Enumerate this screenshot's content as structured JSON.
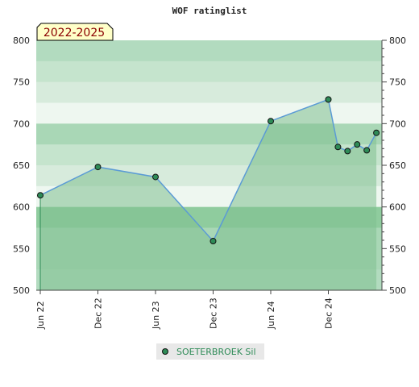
{
  "chart_data": {
    "type": "area",
    "title": "WOF ratinglist",
    "period_label": "2022-2025",
    "xlabel": "",
    "ylabel": "",
    "ylim": [
      500,
      800
    ],
    "yticks": [
      500,
      550,
      600,
      650,
      700,
      750,
      800
    ],
    "xlim": [
      "2022-06",
      "2025-06"
    ],
    "xticks": [
      {
        "date": "2022-06",
        "label": "Jun 22"
      },
      {
        "date": "2022-12",
        "label": "Dec 22"
      },
      {
        "date": "2023-06",
        "label": "Jun 23"
      },
      {
        "date": "2023-12",
        "label": "Dec 23"
      },
      {
        "date": "2024-06",
        "label": "Jun 24"
      },
      {
        "date": "2024-12",
        "label": "Dec 24"
      }
    ],
    "series": [
      {
        "name": "SOETERBROEK Sil",
        "color": "#5b9bd5",
        "marker_color": "#2e8b57",
        "points": [
          {
            "x": "2022-06",
            "y": 614
          },
          {
            "x": "2022-12",
            "y": 648
          },
          {
            "x": "2023-06",
            "y": 636
          },
          {
            "x": "2023-12",
            "y": 559
          },
          {
            "x": "2024-06",
            "y": 703
          },
          {
            "x": "2024-12",
            "y": 729
          },
          {
            "x": "2025-01",
            "y": 672
          },
          {
            "x": "2025-02",
            "y": 667
          },
          {
            "x": "2025-03",
            "y": 675
          },
          {
            "x": "2025-04",
            "y": 668
          },
          {
            "x": "2025-05",
            "y": 689
          }
        ]
      }
    ],
    "fill_color": "#7fbf8f",
    "legend": "bottom-center",
    "grid": false
  }
}
